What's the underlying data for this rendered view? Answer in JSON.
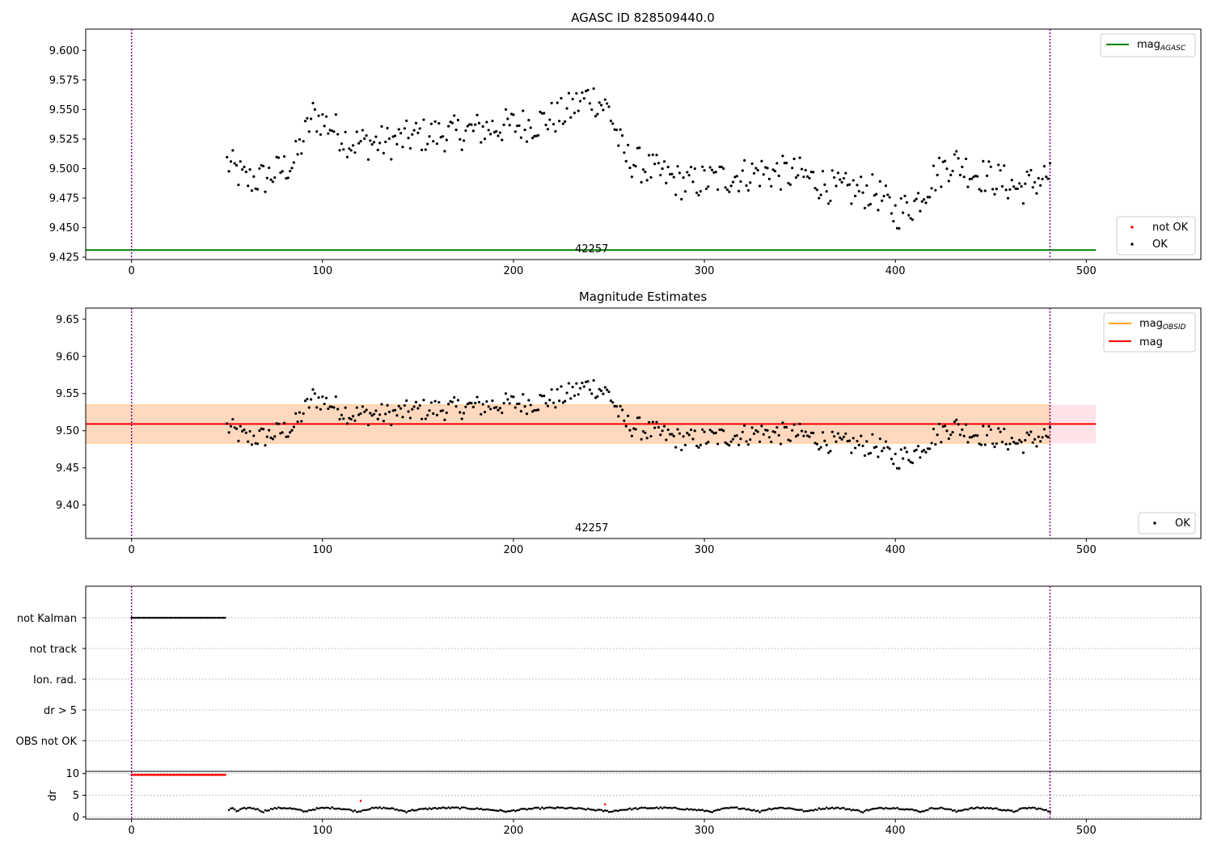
{
  "colors": {
    "ok": "#000000",
    "not_ok": "#ff0000",
    "agasc_line": "#008000",
    "obsid_line": "#ffa500",
    "mag_line": "#ff0000",
    "band_fill": "#ffc0cb",
    "band_fill2": "#ffdab9",
    "obs_boundary": "#800080",
    "grid": "#b0b0b0"
  },
  "chart_data": [
    {
      "type": "scatter",
      "title": "AGASC ID 828509440.0",
      "xlim": [
        -24,
        560
      ],
      "ylim": [
        9.423,
        9.618
      ],
      "xticks": [
        0,
        100,
        200,
        300,
        400,
        500
      ],
      "xtick_labels": [
        "0",
        "100",
        "200",
        "300",
        "400",
        "500"
      ],
      "yticks": [
        9.425,
        9.45,
        9.475,
        9.5,
        9.525,
        9.55,
        9.575,
        9.6
      ],
      "ytick_labels": [
        "9.425",
        "9.450",
        "9.475",
        "9.500",
        "9.525",
        "9.550",
        "9.575",
        "9.600"
      ],
      "obs_boundaries": [
        0,
        481
      ],
      "obsid_label": "42257",
      "obsid_label_x": 241,
      "mag_agasc": 9.431,
      "mag_agasc_xrange": [
        -24,
        505
      ],
      "legend_lines": [
        {
          "label": "mag",
          "sub": "AGASC",
          "color": "#008000"
        }
      ],
      "legend_points": [
        {
          "label": "not OK",
          "color": "#ff0000"
        },
        {
          "label": "OK",
          "color": "#000000"
        }
      ],
      "series": [
        {
          "name": "OK",
          "x_start": 50,
          "x_end": 481,
          "color": "#000000"
        }
      ]
    },
    {
      "type": "scatter",
      "title": "Magnitude Estimates",
      "xlim": [
        -24,
        560
      ],
      "ylim": [
        9.355,
        9.665
      ],
      "xticks": [
        0,
        100,
        200,
        300,
        400,
        500
      ],
      "xtick_labels": [
        "0",
        "100",
        "200",
        "300",
        "400",
        "500"
      ],
      "yticks": [
        9.4,
        9.45,
        9.5,
        9.55,
        9.6,
        9.65
      ],
      "ytick_labels": [
        "9.40",
        "9.45",
        "9.50",
        "9.55",
        "9.60",
        "9.65"
      ],
      "obs_boundaries": [
        0,
        481
      ],
      "obsid_label": "42257",
      "obsid_label_x": 241,
      "mag": 9.509,
      "mag_xrange": [
        -24,
        505
      ],
      "mag_band": [
        9.483,
        9.535
      ],
      "mag_obsid_band": [
        9.483,
        9.535
      ],
      "mag_obsid_band_xrange": [
        -24,
        481
      ],
      "legend_lines": [
        {
          "label": "mag",
          "sub": "OBSID",
          "color": "#ffa500"
        },
        {
          "label": "mag",
          "sub": "",
          "color": "#ff0000"
        }
      ],
      "legend_points": [
        {
          "label": "OK",
          "color": "#000000"
        }
      ],
      "series": [
        {
          "name": "OK",
          "x_start": 50,
          "x_end": 481,
          "color": "#000000"
        }
      ]
    },
    {
      "type": "scatter",
      "title": "",
      "xlim": [
        -24,
        560
      ],
      "categories": [
        "not Kalman",
        "not track",
        "Ion. rad.",
        "dr > 5",
        "OBS not OK"
      ],
      "flag_ranges": [
        {
          "category": "not Kalman",
          "x_start": 0,
          "x_end": 49
        }
      ],
      "obs_boundaries": [
        0,
        481
      ]
    },
    {
      "type": "scatter",
      "title": "",
      "ylabel": "dr",
      "xlim": [
        -24,
        560
      ],
      "ylim": [
        -0.5,
        10.5
      ],
      "xticks": [
        0,
        100,
        200,
        300,
        400,
        500
      ],
      "xtick_labels": [
        "0",
        "100",
        "200",
        "300",
        "400",
        "500"
      ],
      "yticks": [
        0,
        5,
        10
      ],
      "ytick_labels": [
        "0",
        "5",
        "10"
      ],
      "obs_boundaries": [
        0,
        481
      ],
      "dr_saturated": {
        "x_start": 0,
        "x_end": 49,
        "value": 9.7,
        "color": "#ff0000"
      },
      "dr_segments": [
        [
          51,
          55
        ],
        [
          56,
          69
        ],
        [
          70,
          91
        ],
        [
          92,
          119
        ],
        [
          120,
          144
        ],
        [
          145,
          198
        ],
        [
          199,
          252
        ],
        [
          253,
          305
        ],
        [
          306,
          329
        ],
        [
          330,
          354
        ],
        [
          355,
          383
        ],
        [
          384,
          414
        ],
        [
          415,
          432
        ],
        [
          433,
          462
        ],
        [
          463,
          481
        ]
      ],
      "dr_outliers": [
        {
          "x": 120,
          "y": 3.7
        },
        {
          "x": 248,
          "y": 2.9
        }
      ]
    }
  ]
}
